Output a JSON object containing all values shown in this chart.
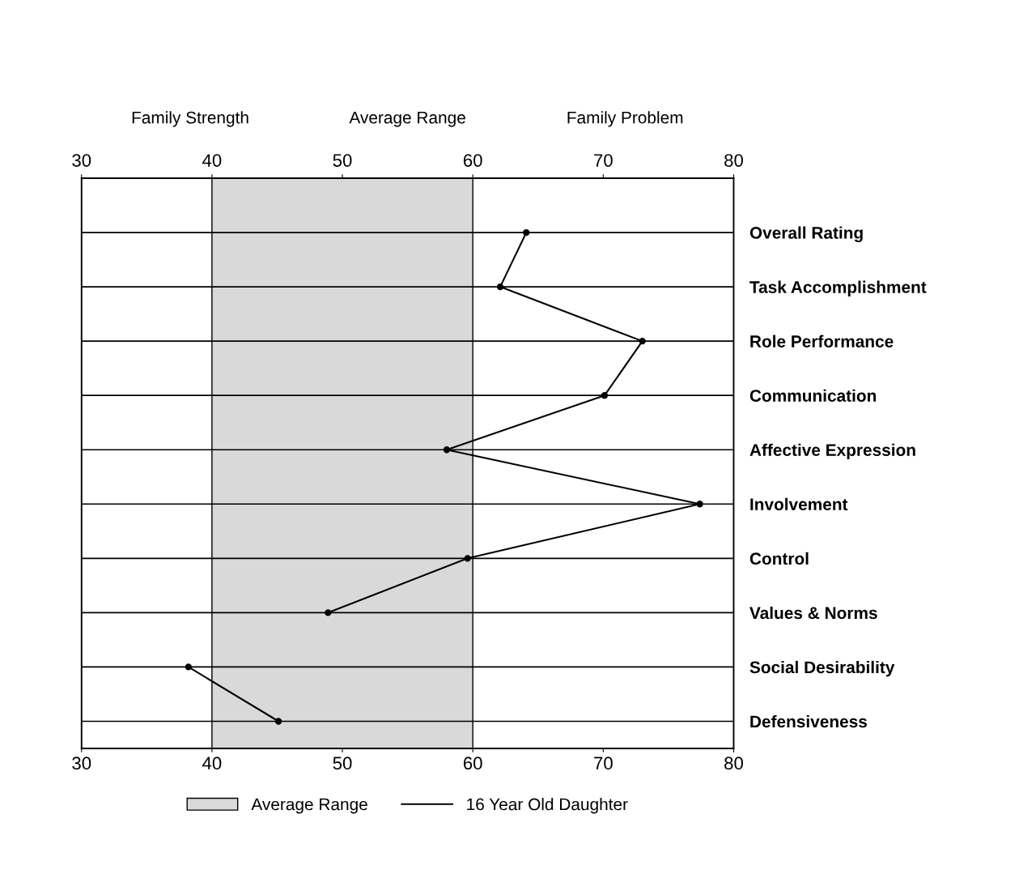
{
  "chart_data": {
    "type": "line",
    "orientation": "horizontal",
    "categories": [
      "Overall Rating",
      "Task Accomplishment",
      "Role Performance",
      "Communication",
      "Affective Expression",
      "Involvement",
      "Control",
      "Values & Norms",
      "Social Desirability",
      "Defensiveness"
    ],
    "series": [
      {
        "name": "16 Year Old Daughter",
        "color": "#000000",
        "values": [
          64.1,
          62.1,
          73.0,
          70.1,
          58.0,
          77.4,
          59.6,
          48.9,
          null,
          null
        ]
      },
      {
        "color": "#000000",
        "values": [
          null,
          null,
          null,
          null,
          null,
          null,
          null,
          null,
          38.2,
          45.1
        ]
      }
    ],
    "xlim": [
      30,
      80
    ],
    "xticks": [
      30,
      40,
      50,
      60,
      70,
      80
    ],
    "x2lim": [
      30,
      80
    ],
    "x2ticks": [
      30,
      40,
      50,
      60,
      70,
      80
    ],
    "annotations": [
      "Family Strength",
      "Average Range",
      "Family Problem"
    ],
    "bands": [
      {
        "axis": "x",
        "from": 40,
        "to": 60,
        "label": "Average Range",
        "color": "#d9d9d9"
      }
    ],
    "grid": "y",
    "marker": "circle",
    "line_style": "solid",
    "legend": "bottom"
  }
}
